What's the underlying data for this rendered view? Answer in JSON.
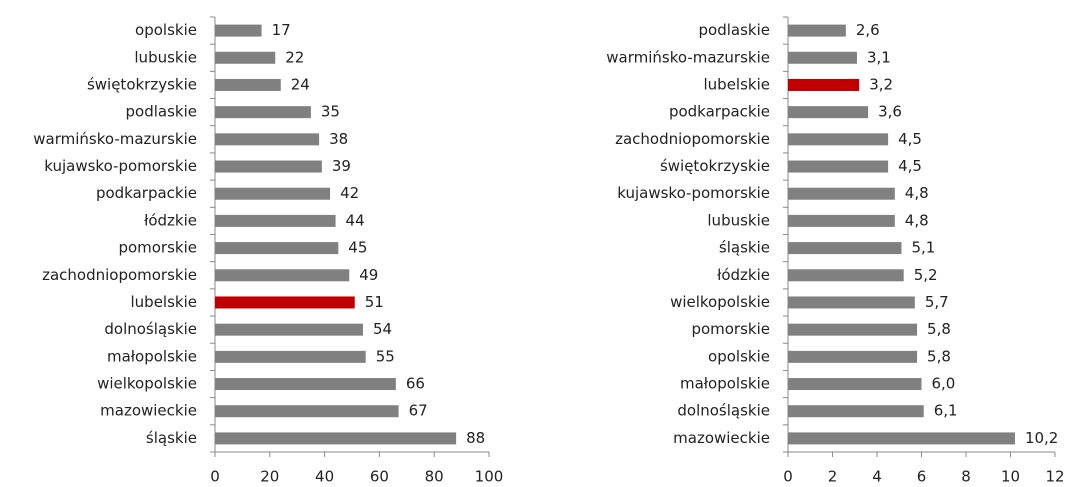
{
  "chart_data": [
    {
      "type": "bar",
      "orientation": "horizontal",
      "categories": [
        "opolskie",
        "lubuskie",
        "świętokrzyskie",
        "podlaskie",
        "warmińsko-mazurskie",
        "kujawsko-pomorskie",
        "podkarpackie",
        "łódzkie",
        "pomorskie",
        "zachodniopomorskie",
        "lubelskie",
        "dolnośląskie",
        "małopolskie",
        "wielkopolskie",
        "mazowieckie",
        "śląskie"
      ],
      "values": [
        17,
        22,
        24,
        35,
        38,
        39,
        42,
        44,
        45,
        49,
        51,
        54,
        55,
        66,
        67,
        88
      ],
      "colors": [
        "#808080",
        "#808080",
        "#808080",
        "#808080",
        "#808080",
        "#808080",
        "#808080",
        "#808080",
        "#808080",
        "#808080",
        "#c00000",
        "#808080",
        "#808080",
        "#808080",
        "#808080",
        "#808080"
      ],
      "xlim": [
        0,
        100
      ],
      "xticks": [
        0,
        20,
        40,
        60,
        80,
        100
      ]
    },
    {
      "type": "bar",
      "orientation": "horizontal",
      "categories": [
        "podlaskie",
        "warmińsko-mazurskie",
        "lubelskie",
        "podkarpackie",
        "zachodniopomorskie",
        "świętokrzyskie",
        "kujawsko-pomorskie",
        "lubuskie",
        "śląskie",
        "łódzkie",
        "wielkopolskie",
        "pomorskie",
        "opolskie",
        "małopolskie",
        "dolnośląskie",
        "mazowieckie"
      ],
      "values": [
        2.6,
        3.1,
        3.2,
        3.6,
        4.5,
        4.5,
        4.8,
        4.8,
        5.1,
        5.2,
        5.7,
        5.8,
        5.8,
        6.0,
        6.1,
        10.2
      ],
      "value_labels": [
        "2,6",
        "3,1",
        "3,2",
        "3,6",
        "4,5",
        "4,5",
        "4,8",
        "4,8",
        "5,1",
        "5,2",
        "5,7",
        "5,8",
        "5,8",
        "6,0",
        "6,1",
        "10,2"
      ],
      "colors": [
        "#808080",
        "#808080",
        "#c00000",
        "#808080",
        "#808080",
        "#808080",
        "#808080",
        "#808080",
        "#808080",
        "#808080",
        "#808080",
        "#808080",
        "#808080",
        "#808080",
        "#808080",
        "#808080"
      ],
      "xlim": [
        0,
        12
      ],
      "xticks": [
        0,
        2,
        4,
        6,
        8,
        10,
        12
      ]
    }
  ]
}
